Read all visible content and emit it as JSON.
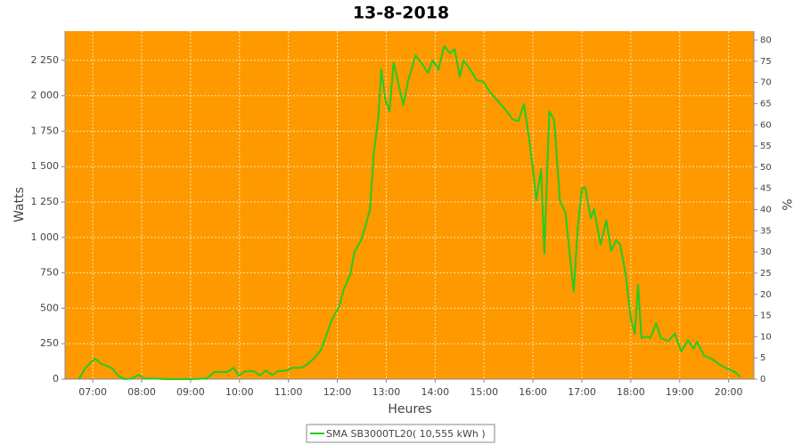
{
  "chart_data": {
    "type": "line",
    "title": "13-8-2018",
    "x_label": "Heures",
    "y_label": "Watts",
    "y2_label": "%",
    "x": [
      "06:43",
      "06:50",
      "06:56",
      "07:03",
      "07:10",
      "07:17",
      "07:24",
      "07:31",
      "07:39",
      "07:48",
      "07:56",
      "08:03",
      "08:12",
      "08:30",
      "09:00",
      "09:20",
      "09:29",
      "09:45",
      "09:53",
      "09:59",
      "10:07",
      "10:18",
      "10:25",
      "10:32",
      "10:40",
      "10:47",
      "10:58",
      "11:05",
      "11:16",
      "11:23",
      "11:31",
      "11:40",
      "11:46",
      "11:53",
      "12:02",
      "12:08",
      "12:16",
      "12:21",
      "12:29",
      "12:34",
      "12:40",
      "12:45",
      "12:50",
      "12:54",
      "12:59",
      "13:04",
      "13:09",
      "13:14",
      "13:21",
      "13:27",
      "13:36",
      "13:44",
      "13:51",
      "13:57",
      "14:04",
      "14:11",
      "14:18",
      "14:24",
      "14:30",
      "14:35",
      "14:43",
      "14:51",
      "14:59",
      "15:08",
      "15:16",
      "15:25",
      "15:35",
      "15:42",
      "15:49",
      "15:56",
      "16:00",
      "16:04",
      "16:10",
      "16:14",
      "16:20",
      "16:26",
      "16:33",
      "16:40",
      "16:45",
      "16:50",
      "16:55",
      "17:00",
      "17:04",
      "17:11",
      "17:15",
      "17:23",
      "17:30",
      "17:36",
      "17:42",
      "17:47",
      "17:54",
      "18:00",
      "18:05",
      "18:09",
      "18:13",
      "18:20",
      "18:24",
      "18:31",
      "18:37",
      "18:46",
      "18:54",
      "19:02",
      "19:10",
      "19:17",
      "19:21",
      "19:30",
      "19:39",
      "19:48",
      "19:58",
      "20:08",
      "20:14"
    ],
    "series": [
      {
        "name": "SMA SB3000TL20( 10,555 kWh )",
        "color": "#22cc22",
        "values": [
          0,
          70,
          110,
          145,
          110,
          95,
          75,
          25,
          0,
          5,
          30,
          5,
          5,
          0,
          0,
          5,
          50,
          50,
          80,
          25,
          55,
          55,
          25,
          60,
          30,
          55,
          60,
          80,
          80,
          105,
          145,
          205,
          300,
          415,
          510,
          635,
          740,
          900,
          980,
          1070,
          1195,
          1610,
          1830,
          2185,
          1970,
          1890,
          2235,
          2110,
          1935,
          2110,
          2285,
          2225,
          2160,
          2250,
          2185,
          2350,
          2300,
          2330,
          2135,
          2250,
          2185,
          2110,
          2100,
          2020,
          1970,
          1910,
          1835,
          1820,
          1940,
          1670,
          1480,
          1260,
          1480,
          885,
          1890,
          1830,
          1260,
          1170,
          885,
          615,
          1075,
          1345,
          1355,
          1135,
          1200,
          950,
          1120,
          905,
          980,
          950,
          730,
          425,
          320,
          665,
          290,
          300,
          290,
          395,
          290,
          270,
          320,
          195,
          275,
          215,
          265,
          165,
          145,
          105,
          75,
          50,
          15
        ]
      }
    ],
    "xlim": [
      "06:26",
      "20:31"
    ],
    "xticks": [
      "07:00",
      "08:00",
      "09:00",
      "10:00",
      "11:00",
      "12:00",
      "13:00",
      "14:00",
      "15:00",
      "16:00",
      "17:00",
      "18:00",
      "19:00",
      "20:00"
    ],
    "ylim": [
      0,
      2456
    ],
    "yticks": [
      0,
      250,
      500,
      750,
      {
        "value": 1000,
        "label": "1 000"
      },
      {
        "value": 1250,
        "label": "1 250"
      },
      {
        "value": 1500,
        "label": "1 500"
      },
      {
        "value": 1750,
        "label": "1 750"
      },
      {
        "value": 2000,
        "label": "2 000"
      },
      {
        "value": 2250,
        "label": "2 250"
      }
    ],
    "y2lim": [
      0,
      82.1
    ],
    "y2ticks": [
      0,
      5,
      10,
      15,
      20,
      25,
      30,
      35,
      40,
      45,
      50,
      55,
      60,
      65,
      70,
      75,
      80
    ],
    "grid": true,
    "background": "#ff9900",
    "legend": "bottom"
  }
}
